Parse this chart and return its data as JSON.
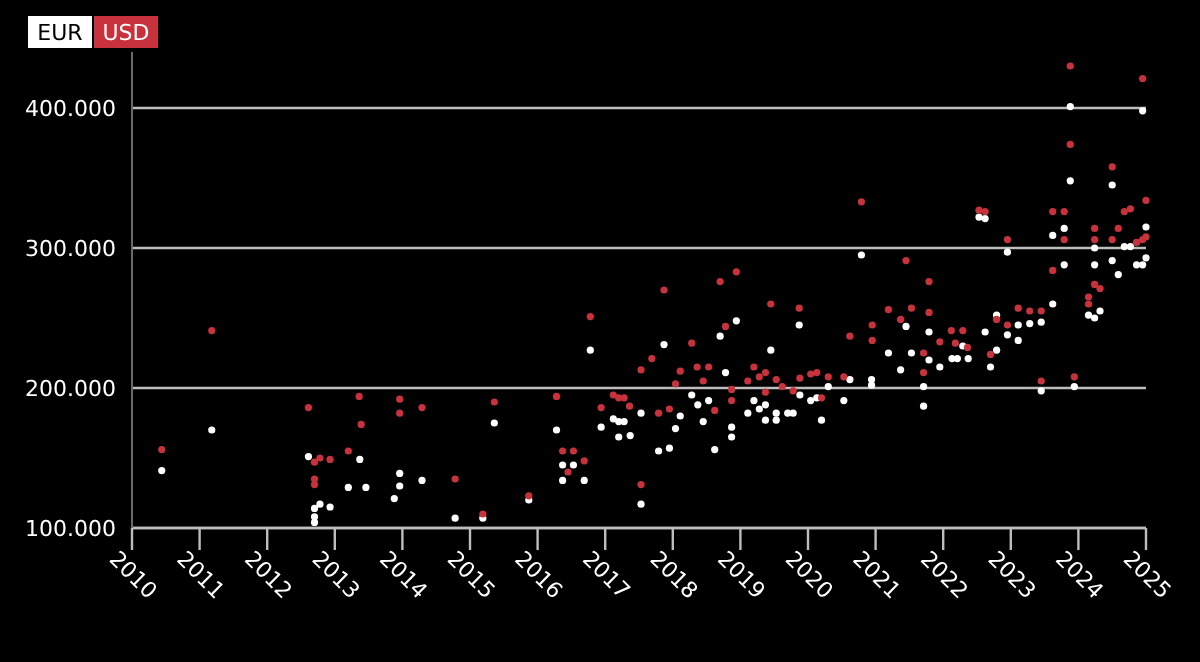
{
  "chart_data": {
    "type": "scatter",
    "xlim": [
      2010,
      2025
    ],
    "xticks": [
      2010,
      2011,
      2012,
      2013,
      2014,
      2015,
      2016,
      2017,
      2018,
      2019,
      2020,
      2021,
      2022,
      2023,
      2024,
      2025
    ],
    "ylim": [
      100000,
      440000
    ],
    "yticks": [
      {
        "value": 100000,
        "label": "100.000"
      },
      {
        "value": 200000,
        "label": "200.000"
      },
      {
        "value": 300000,
        "label": "300.000"
      },
      {
        "value": 400000,
        "label": "400.000"
      }
    ],
    "grid": "y",
    "legend": "top left",
    "marker": "circle",
    "series": [
      {
        "name": "EUR",
        "color": "#ffffff",
        "x": [
          2010.44,
          2011.18,
          2012.61,
          2012.7,
          2012.78,
          2012.93,
          2012.7,
          2012.7,
          2013.37,
          2013.2,
          2013.46,
          2013.96,
          2013.96,
          2013.88,
          2014.29,
          2014.78,
          2015.19,
          2015.36,
          2015.87,
          2016.28,
          2016.37,
          2016.53,
          2016.37,
          2016.69,
          2016.78,
          2016.94,
          2017.12,
          2017.2,
          2017.2,
          2017.28,
          2017.37,
          2017.53,
          2017.53,
          2017.87,
          2017.79,
          2017.95,
          2018.04,
          2018.11,
          2018.28,
          2018.37,
          2018.45,
          2018.53,
          2018.62,
          2018.7,
          2018.78,
          2018.87,
          2018.87,
          2018.94,
          2019.11,
          2019.2,
          2019.28,
          2019.37,
          2019.37,
          2019.53,
          2019.53,
          2019.45,
          2019.7,
          2019.78,
          2019.87,
          2019.88,
          2020.04,
          2020.13,
          2020.2,
          2020.3,
          2020.53,
          2020.62,
          2020.79,
          2020.94,
          2020.94,
          2021.19,
          2021.45,
          2021.79,
          2021.37,
          2021.53,
          2021.79,
          2021.71,
          2021.71,
          2021.95,
          2022.13,
          2022.21,
          2022.29,
          2022.37,
          2022.53,
          2022.62,
          2022.62,
          2022.7,
          2022.79,
          2022.79,
          2022.95,
          2022.95,
          2023.11,
          2023.11,
          2023.28,
          2023.45,
          2023.45,
          2023.62,
          2023.62,
          2023.79,
          2023.79,
          2023.88,
          2023.88,
          2023.94,
          2024.15,
          2024.24,
          2024.32,
          2024.24,
          2024.24,
          2024.5,
          2024.5,
          2024.59,
          2024.68,
          2024.77,
          2024.86,
          2024.95,
          2024.95,
          2025,
          2025
        ],
        "values": [
          141000,
          170000,
          151000,
          114000,
          117000,
          115000,
          108000,
          104000,
          149000,
          129000,
          129000,
          139000,
          130000,
          121000,
          134000,
          107000,
          107000,
          175000,
          120000,
          170000,
          145000,
          145000,
          134000,
          134000,
          227000,
          172000,
          178000,
          165000,
          176000,
          176000,
          166000,
          117000,
          182000,
          231000,
          155000,
          157000,
          171000,
          180000,
          195000,
          188000,
          176000,
          191000,
          156000,
          237000,
          211000,
          172000,
          165000,
          248000,
          182000,
          191000,
          185000,
          188000,
          177000,
          182000,
          177000,
          227000,
          182000,
          182000,
          245000,
          195000,
          191000,
          193000,
          177000,
          201000,
          191000,
          206000,
          295000,
          206000,
          202000,
          225000,
          244000,
          240000,
          213000,
          225000,
          220000,
          201000,
          187000,
          215000,
          221000,
          221000,
          230000,
          221000,
          322000,
          321000,
          240000,
          215000,
          252000,
          227000,
          297000,
          238000,
          245000,
          234000,
          246000,
          247000,
          198000,
          260000,
          309000,
          314000,
          288000,
          401000,
          348000,
          201000,
          252000,
          250000,
          255000,
          300000,
          288000,
          345000,
          291000,
          281000,
          301000,
          301000,
          288000,
          288000,
          398000,
          315000,
          293000
        ]
      },
      {
        "name": "USD",
        "color": "#c8323c",
        "x": [
          2010.44,
          2011.18,
          2012.61,
          2012.7,
          2012.78,
          2012.93,
          2012.7,
          2012.7,
          2013.2,
          2013.36,
          2013.39,
          2013.96,
          2013.96,
          2014.29,
          2014.78,
          2015.19,
          2015.36,
          2015.87,
          2016.28,
          2016.37,
          2016.53,
          2016.45,
          2016.69,
          2016.78,
          2016.94,
          2017.12,
          2017.2,
          2017.28,
          2017.36,
          2017.53,
          2017.53,
          2017.69,
          2017.79,
          2017.87,
          2017.95,
          2018.04,
          2018.11,
          2018.28,
          2018.36,
          2018.53,
          2018.45,
          2018.62,
          2018.7,
          2018.78,
          2018.87,
          2018.87,
          2018.94,
          2019.11,
          2019.2,
          2019.28,
          2019.37,
          2019.37,
          2019.53,
          2019.45,
          2019.62,
          2019.78,
          2019.87,
          2019.88,
          2020.04,
          2020.13,
          2020.2,
          2020.3,
          2020.53,
          2020.62,
          2020.79,
          2020.95,
          2020.95,
          2021.19,
          2021.45,
          2021.53,
          2021.37,
          2021.79,
          2021.79,
          2021.71,
          2021.71,
          2021.95,
          2022.12,
          2022.29,
          2022.18,
          2022.36,
          2022.53,
          2022.62,
          2022.7,
          2022.79,
          2022.95,
          2022.95,
          2023.11,
          2023.28,
          2023.45,
          2023.45,
          2023.62,
          2023.62,
          2023.79,
          2023.79,
          2023.88,
          2023.88,
          2023.94,
          2024.15,
          2024.15,
          2024.24,
          2024.32,
          2024.24,
          2024.24,
          2024.5,
          2024.59,
          2024.5,
          2024.68,
          2024.77,
          2024.86,
          2024.95,
          2024.95,
          2025,
          2025
        ],
        "values": [
          156000,
          241000,
          186000,
          147000,
          150000,
          149000,
          135000,
          131000,
          155000,
          194000,
          174000,
          192000,
          182000,
          186000,
          135000,
          110000,
          190000,
          123000,
          194000,
          155000,
          155000,
          140000,
          148000,
          251000,
          186000,
          195000,
          193000,
          193000,
          187000,
          131000,
          213000,
          221000,
          182000,
          270000,
          185000,
          203000,
          212000,
          232000,
          215000,
          215000,
          205000,
          184000,
          276000,
          244000,
          199000,
          191000,
          283000,
          205000,
          215000,
          208000,
          211000,
          197000,
          206000,
          260000,
          201000,
          198000,
          257000,
          207000,
          210000,
          211000,
          193000,
          208000,
          208000,
          237000,
          333000,
          234000,
          245000,
          256000,
          291000,
          257000,
          249000,
          276000,
          254000,
          225000,
          211000,
          233000,
          241000,
          241000,
          232000,
          229000,
          327000,
          326000,
          224000,
          249000,
          306000,
          245000,
          257000,
          255000,
          255000,
          205000,
          326000,
          284000,
          326000,
          306000,
          430000,
          374000,
          208000,
          265000,
          260000,
          274000,
          271000,
          314000,
          306000,
          358000,
          314000,
          306000,
          326000,
          328000,
          304000,
          306000,
          421000,
          334000,
          308000
        ]
      }
    ]
  }
}
